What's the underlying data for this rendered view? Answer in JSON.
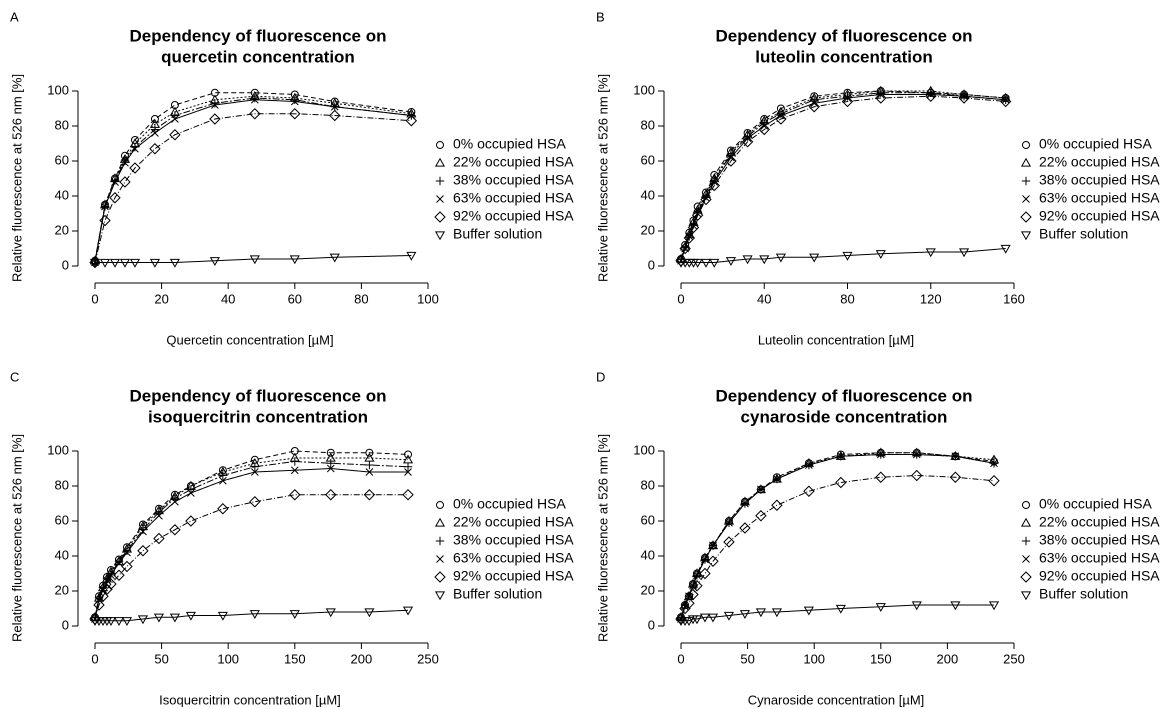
{
  "chart_data": [
    {
      "type": "line",
      "panel": "A",
      "title": [
        "Dependency of fluorescence on",
        "quercetin concentration"
      ],
      "x_label": "Quercetin concentration [µM]",
      "y_label": "Relative fluorescence at 526 nm [%]",
      "x": [
        0,
        3,
        6,
        9,
        12,
        18,
        24,
        36,
        48,
        60,
        72,
        95
      ],
      "xlim": [
        0,
        100
      ],
      "xticks": [
        0,
        20,
        40,
        60,
        80,
        100
      ],
      "ylim": [
        0,
        100
      ],
      "yticks": [
        0,
        20,
        40,
        60,
        80,
        100
      ],
      "series": [
        {
          "name": "0% occupied HSA",
          "marker": "circle",
          "color": "#000000",
          "values": [
            3,
            35,
            50,
            63,
            72,
            84,
            92,
            99,
            99,
            98,
            94,
            88
          ]
        },
        {
          "name": "22% occupied HSA",
          "marker": "triangle-up",
          "color": "#000000",
          "values": [
            3,
            35,
            50,
            61,
            70,
            81,
            88,
            95,
            97,
            96,
            93,
            87
          ]
        },
        {
          "name": "38% occupied HSA",
          "marker": "plus",
          "color": "#000000",
          "values": [
            3,
            34,
            49,
            60,
            68,
            78,
            86,
            93,
            96,
            95,
            91,
            86
          ]
        },
        {
          "name": "63% occupied HSA",
          "marker": "cross",
          "color": "#000000",
          "values": [
            2,
            34,
            48,
            59,
            67,
            76,
            84,
            92,
            95,
            94,
            91,
            86
          ]
        },
        {
          "name": "92% occupied HSA",
          "marker": "diamond",
          "color": "#000000",
          "values": [
            2,
            26,
            39,
            48,
            56,
            67,
            75,
            84,
            87,
            87,
            86,
            83
          ]
        },
        {
          "name": "Buffer solution",
          "marker": "triangle-down",
          "color": "#000000",
          "values": [
            2,
            2,
            2,
            2,
            2,
            2,
            2,
            3,
            4,
            4,
            5,
            6
          ]
        }
      ]
    },
    {
      "type": "line",
      "panel": "B",
      "title": [
        "Dependency of fluorescence on",
        "luteolin concentration"
      ],
      "x_label": "Luteolin concentration [µM]",
      "y_label": "Relative fluorescence at 526 nm [%]",
      "x": [
        0,
        2,
        4,
        6,
        8,
        12,
        16,
        24,
        32,
        40,
        48,
        64,
        80,
        96,
        120,
        136,
        156
      ],
      "xlim": [
        0,
        160
      ],
      "xticks": [
        0,
        40,
        80,
        120,
        160
      ],
      "ylim": [
        0,
        100
      ],
      "yticks": [
        0,
        20,
        40,
        60,
        80,
        100
      ],
      "series": [
        {
          "name": "0% occupied HSA",
          "marker": "circle",
          "color": "#000000",
          "values": [
            4,
            12,
            19,
            26,
            34,
            42,
            52,
            66,
            76,
            84,
            90,
            97,
            99,
            100,
            99,
            98,
            96
          ]
        },
        {
          "name": "22% occupied HSA",
          "marker": "triangle-up",
          "color": "#000000",
          "values": [
            4,
            11,
            18,
            25,
            32,
            41,
            50,
            65,
            75,
            83,
            88,
            96,
            98,
            100,
            100,
            98,
            96
          ]
        },
        {
          "name": "38% occupied HSA",
          "marker": "plus",
          "color": "#000000",
          "values": [
            4,
            11,
            17,
            24,
            31,
            40,
            49,
            64,
            74,
            82,
            87,
            95,
            97,
            99,
            99,
            97,
            95
          ]
        },
        {
          "name": "63% occupied HSA",
          "marker": "cross",
          "color": "#000000",
          "values": [
            3,
            10,
            17,
            23,
            30,
            39,
            48,
            62,
            73,
            80,
            86,
            93,
            96,
            98,
            98,
            97,
            95
          ]
        },
        {
          "name": "92% occupied HSA",
          "marker": "diamond",
          "color": "#000000",
          "values": [
            3,
            10,
            16,
            22,
            29,
            38,
            46,
            60,
            71,
            78,
            84,
            91,
            94,
            96,
            97,
            96,
            94
          ]
        },
        {
          "name": "Buffer solution",
          "marker": "triangle-down",
          "color": "#000000",
          "values": [
            2,
            2,
            2,
            2,
            2,
            2,
            2,
            3,
            4,
            4,
            5,
            5,
            6,
            7,
            8,
            8,
            10
          ]
        }
      ]
    },
    {
      "type": "line",
      "panel": "C",
      "title": [
        "Dependency of fluorescence on",
        "isoquercitrin concentration"
      ],
      "x_label": "Isoquercitrin concentration [µM]",
      "y_label": "Relative fluorescence at 526 nm [%]",
      "x": [
        0,
        3,
        6,
        9,
        12,
        18,
        24,
        36,
        48,
        60,
        72,
        96,
        120,
        150,
        177,
        206,
        235
      ],
      "xlim": [
        0,
        250
      ],
      "xticks": [
        0,
        50,
        100,
        150,
        200,
        250
      ],
      "ylim": [
        0,
        100
      ],
      "yticks": [
        0,
        20,
        40,
        60,
        80,
        100
      ],
      "series": [
        {
          "name": "0% occupied HSA",
          "marker": "circle",
          "color": "#000000",
          "values": [
            5,
            17,
            23,
            28,
            32,
            38,
            45,
            58,
            67,
            75,
            80,
            89,
            95,
            100,
            99,
            99,
            98
          ]
        },
        {
          "name": "22% occupied HSA",
          "marker": "triangle-up",
          "color": "#000000",
          "values": [
            5,
            16,
            22,
            27,
            31,
            37,
            44,
            57,
            66,
            74,
            80,
            88,
            93,
            96,
            96,
            96,
            95
          ]
        },
        {
          "name": "38% occupied HSA",
          "marker": "plus",
          "color": "#000000",
          "values": [
            5,
            16,
            22,
            27,
            30,
            37,
            43,
            55,
            65,
            73,
            78,
            86,
            91,
            94,
            93,
            92,
            91
          ]
        },
        {
          "name": "63% occupied HSA",
          "marker": "cross",
          "color": "#000000",
          "values": [
            4,
            15,
            21,
            26,
            29,
            36,
            42,
            54,
            63,
            71,
            76,
            83,
            88,
            89,
            90,
            88,
            88
          ]
        },
        {
          "name": "92% occupied HSA",
          "marker": "diamond",
          "color": "#000000",
          "values": [
            4,
            12,
            17,
            21,
            24,
            29,
            34,
            43,
            50,
            55,
            60,
            67,
            71,
            75,
            75,
            75,
            75
          ]
        },
        {
          "name": "Buffer solution",
          "marker": "triangle-down",
          "color": "#000000",
          "values": [
            3,
            3,
            3,
            3,
            3,
            3,
            3,
            4,
            5,
            5,
            6,
            6,
            7,
            7,
            8,
            8,
            9
          ]
        }
      ]
    },
    {
      "type": "line",
      "panel": "D",
      "title": [
        "Dependency of fluorescence on",
        "cynaroside concentration"
      ],
      "x_label": "Cynaroside concentration [µM]",
      "y_label": "Relative fluorescence at 526 nm [%]",
      "x": [
        0,
        3,
        6,
        9,
        12,
        18,
        24,
        36,
        48,
        60,
        72,
        96,
        120,
        150,
        177,
        206,
        235
      ],
      "xlim": [
        0,
        250
      ],
      "xticks": [
        0,
        50,
        100,
        150,
        200,
        250
      ],
      "ylim": [
        0,
        100
      ],
      "yticks": [
        0,
        20,
        40,
        60,
        80,
        100
      ],
      "series": [
        {
          "name": "0% occupied HSA",
          "marker": "circle",
          "color": "#000000",
          "values": [
            5,
            12,
            17,
            24,
            30,
            39,
            46,
            60,
            71,
            78,
            85,
            93,
            98,
            99,
            99,
            97,
            94
          ]
        },
        {
          "name": "22% occupied HSA",
          "marker": "triangle-up",
          "color": "#000000",
          "values": [
            5,
            12,
            17,
            24,
            30,
            39,
            46,
            60,
            71,
            78,
            84,
            93,
            97,
            99,
            99,
            97,
            95
          ]
        },
        {
          "name": "38% occupied HSA",
          "marker": "plus",
          "color": "#000000",
          "values": [
            4,
            12,
            17,
            23,
            29,
            38,
            46,
            59,
            70,
            78,
            84,
            92,
            97,
            98,
            98,
            97,
            93
          ]
        },
        {
          "name": "63% occupied HSA",
          "marker": "cross",
          "color": "#000000",
          "values": [
            4,
            11,
            17,
            23,
            29,
            38,
            46,
            59,
            70,
            78,
            84,
            92,
            97,
            98,
            98,
            97,
            93
          ]
        },
        {
          "name": "92% occupied HSA",
          "marker": "diamond",
          "color": "#000000",
          "values": [
            4,
            10,
            13,
            18,
            23,
            30,
            37,
            48,
            56,
            63,
            69,
            77,
            82,
            85,
            86,
            85,
            83
          ]
        },
        {
          "name": "Buffer solution",
          "marker": "triangle-down",
          "color": "#000000",
          "values": [
            3,
            3,
            3,
            4,
            4,
            5,
            5,
            6,
            7,
            8,
            8,
            9,
            10,
            11,
            12,
            12,
            12
          ]
        }
      ]
    }
  ]
}
